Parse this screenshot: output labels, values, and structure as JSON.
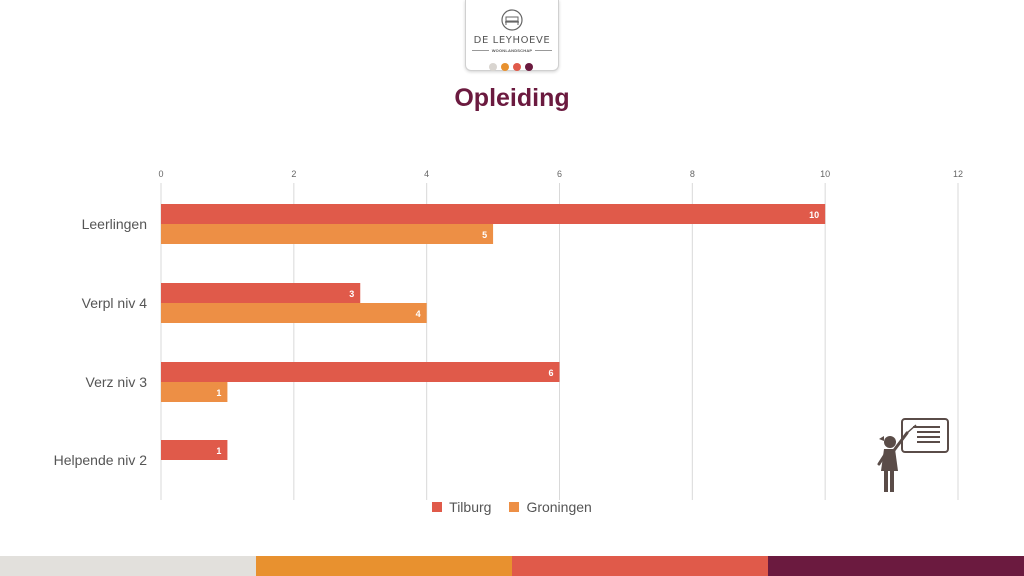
{
  "logo": {
    "name": "DE LEYHOEVE",
    "subtitle": "WOONLANDSCHAP",
    "dot_colors": [
      "#d9d5d0",
      "#e8912f",
      "#e05a4a",
      "#6b1a3f"
    ]
  },
  "title": "Opleiding",
  "colors": {
    "tilburg": "#e05a4a",
    "groningen": "#ed8f45",
    "grid": "#d9d9d9",
    "title": "#6b1a3f"
  },
  "chart_data": {
    "type": "bar",
    "orientation": "horizontal",
    "title": "Opleiding",
    "xlabel": "",
    "ylabel": "",
    "categories": [
      "Leerlingen",
      "Verpl niv 4",
      "Verz niv 3",
      "Helpende niv 2"
    ],
    "series": [
      {
        "name": "Tilburg",
        "values": [
          10,
          3,
          6,
          1
        ]
      },
      {
        "name": "Groningen",
        "values": [
          5,
          4,
          1,
          null
        ]
      }
    ],
    "xlim": [
      0,
      12
    ],
    "ticks": [
      0,
      2,
      4,
      6,
      8,
      10,
      12
    ],
    "grid": true,
    "axis_position": "top",
    "legend_position": "bottom"
  },
  "legend": {
    "tilburg": "Tilburg",
    "groningen": "Groningen"
  },
  "footer_colors": [
    "#e2e0dc",
    "#e8912f",
    "#e05a4a",
    "#6b1a3f"
  ]
}
